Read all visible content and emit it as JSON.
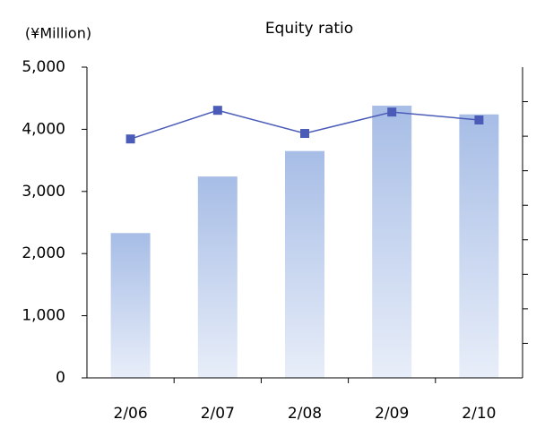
{
  "chart_data": {
    "type": "bar_line",
    "title": "Equity ratio",
    "y_unit_label": "(¥Million)",
    "categories": [
      "2/06",
      "2/07",
      "2/08",
      "2/09",
      "2/10"
    ],
    "series": [
      {
        "type": "bar",
        "color": "#a7bde6",
        "values": [
          2330,
          3240,
          3650,
          4380,
          4240
        ]
      },
      {
        "type": "line",
        "axis": "y2",
        "color": "#4a5cb8",
        "values": [
          69.2,
          77.5,
          70.8,
          77.0,
          74.7
        ]
      }
    ],
    "ylim": [
      0,
      5000
    ],
    "yticks": [
      0,
      {
        "value": 1000,
        "label": "1,000"
      },
      {
        "value": 2000,
        "label": "2,000"
      },
      {
        "value": 3000,
        "label": "3,000"
      },
      {
        "value": 4000,
        "label": "4,000"
      },
      {
        "value": 5000,
        "label": "5,000"
      }
    ],
    "y2lim": [
      0,
      90
    ],
    "y2ticks": [
      10,
      20,
      30,
      40,
      50,
      60,
      70,
      80
    ]
  }
}
